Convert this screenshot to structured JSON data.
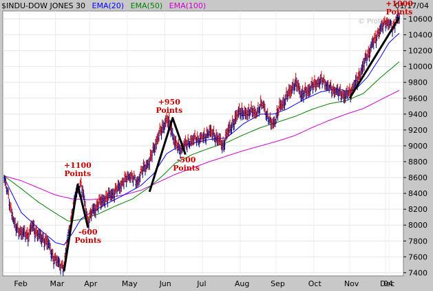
{
  "header": {
    "symbol": "$INDU-DOW JONES 30",
    "legend": [
      {
        "label": "EMA(20)",
        "color": "#0000ff"
      },
      {
        "label": "EMA(50)",
        "color": "#008000"
      },
      {
        "label": "EMA(100)",
        "color": "#cc00cc"
      }
    ],
    "date": "01/17/04"
  },
  "watermark": "© Proto...",
  "chart_data": {
    "type": "line",
    "title": "$INDU-DOW JONES 30",
    "x_ticks": [
      "Feb",
      "Mar",
      "Apr",
      "May",
      "Jun",
      "Jul",
      "Aug",
      "Sep",
      "Oct",
      "Nov",
      "Dec",
      "04"
    ],
    "y_ticks": [
      7400,
      7600,
      7800,
      8000,
      8200,
      8400,
      8600,
      8800,
      9000,
      9200,
      9400,
      9600,
      9800,
      10000,
      10200,
      10400,
      10600
    ],
    "ylim": [
      7360,
      10700
    ],
    "colors": {
      "price": "#cc0000",
      "ema20": "#0000ff",
      "ema50": "#008000",
      "ema100": "#cc00cc",
      "trend": "#000000",
      "annotation": "#cc0000"
    },
    "price_anchors": [
      [
        0,
        8600
      ],
      [
        6,
        8320
      ],
      [
        12,
        8000
      ],
      [
        20,
        7900
      ],
      [
        28,
        7870
      ],
      [
        33,
        7980
      ],
      [
        38,
        7900
      ],
      [
        44,
        7820
      ],
      [
        50,
        7800
      ],
      [
        55,
        7650
      ],
      [
        60,
        7560
      ],
      [
        66,
        7500
      ],
      [
        70,
        7480
      ],
      [
        74,
        7830
      ],
      [
        80,
        8190
      ],
      [
        85,
        8450
      ],
      [
        90,
        8510
      ],
      [
        94,
        8300
      ],
      [
        98,
        8040
      ],
      [
        104,
        8180
      ],
      [
        112,
        8280
      ],
      [
        120,
        8340
      ],
      [
        130,
        8420
      ],
      [
        140,
        8560
      ],
      [
        148,
        8640
      ],
      [
        155,
        8540
      ],
      [
        162,
        8700
      ],
      [
        170,
        8800
      ],
      [
        178,
        9050
      ],
      [
        185,
        9220
      ],
      [
        190,
        9320
      ],
      [
        193,
        9280
      ],
      [
        197,
        9150
      ],
      [
        200,
        9030
      ],
      [
        204,
        8960
      ],
      [
        209,
        8990
      ],
      [
        216,
        9050
      ],
      [
        224,
        9100
      ],
      [
        232,
        9100
      ],
      [
        240,
        9180
      ],
      [
        246,
        9130
      ],
      [
        250,
        9080
      ],
      [
        256,
        9000
      ],
      [
        262,
        9180
      ],
      [
        270,
        9320
      ],
      [
        276,
        9450
      ],
      [
        282,
        9380
      ],
      [
        288,
        9460
      ],
      [
        294,
        9400
      ],
      [
        300,
        9530
      ],
      [
        304,
        9500
      ],
      [
        308,
        9380
      ],
      [
        312,
        9280
      ],
      [
        316,
        9300
      ],
      [
        322,
        9480
      ],
      [
        330,
        9600
      ],
      [
        336,
        9720
      ],
      [
        342,
        9780
      ],
      [
        348,
        9640
      ],
      [
        352,
        9660
      ],
      [
        358,
        9730
      ],
      [
        364,
        9780
      ],
      [
        370,
        9830
      ],
      [
        376,
        9800
      ],
      [
        382,
        9720
      ],
      [
        388,
        9700
      ],
      [
        394,
        9650
      ],
      [
        400,
        9630
      ],
      [
        406,
        9690
      ],
      [
        412,
        9800
      ],
      [
        418,
        9950
      ],
      [
        424,
        10120
      ],
      [
        430,
        10260
      ],
      [
        436,
        10400
      ],
      [
        442,
        10500
      ],
      [
        446,
        10580
      ],
      [
        450,
        10540
      ],
      [
        454,
        10500
      ],
      [
        458,
        10580
      ],
      [
        462,
        10620
      ]
    ],
    "ema20_anchors": [
      [
        0,
        8600
      ],
      [
        20,
        8160
      ],
      [
        40,
        7960
      ],
      [
        60,
        7780
      ],
      [
        70,
        7750
      ],
      [
        80,
        7900
      ],
      [
        90,
        8080
      ],
      [
        100,
        8150
      ],
      [
        120,
        8270
      ],
      [
        140,
        8380
      ],
      [
        160,
        8500
      ],
      [
        175,
        8650
      ],
      [
        190,
        8900
      ],
      [
        205,
        9000
      ],
      [
        220,
        9030
      ],
      [
        240,
        9080
      ],
      [
        260,
        9100
      ],
      [
        280,
        9280
      ],
      [
        300,
        9400
      ],
      [
        315,
        9400
      ],
      [
        330,
        9460
      ],
      [
        350,
        9580
      ],
      [
        370,
        9680
      ],
      [
        390,
        9720
      ],
      [
        400,
        9690
      ],
      [
        410,
        9700
      ],
      [
        425,
        9870
      ],
      [
        440,
        10120
      ],
      [
        450,
        10300
      ],
      [
        462,
        10420
      ]
    ],
    "ema50_anchors": [
      [
        0,
        8620
      ],
      [
        20,
        8460
      ],
      [
        40,
        8290
      ],
      [
        60,
        8150
      ],
      [
        75,
        8050
      ],
      [
        90,
        8070
      ],
      [
        110,
        8140
      ],
      [
        130,
        8240
      ],
      [
        150,
        8330
      ],
      [
        170,
        8480
      ],
      [
        185,
        8620
      ],
      [
        200,
        8780
      ],
      [
        220,
        8890
      ],
      [
        240,
        8970
      ],
      [
        260,
        9040
      ],
      [
        280,
        9140
      ],
      [
        300,
        9230
      ],
      [
        320,
        9300
      ],
      [
        340,
        9370
      ],
      [
        360,
        9460
      ],
      [
        380,
        9530
      ],
      [
        400,
        9570
      ],
      [
        420,
        9660
      ],
      [
        440,
        9860
      ],
      [
        462,
        10060
      ]
    ],
    "ema100_anchors": [
      [
        0,
        8620
      ],
      [
        20,
        8560
      ],
      [
        40,
        8470
      ],
      [
        60,
        8380
      ],
      [
        80,
        8330
      ],
      [
        100,
        8320
      ],
      [
        120,
        8340
      ],
      [
        140,
        8380
      ],
      [
        160,
        8440
      ],
      [
        180,
        8540
      ],
      [
        200,
        8640
      ],
      [
        220,
        8720
      ],
      [
        240,
        8800
      ],
      [
        260,
        8870
      ],
      [
        280,
        8940
      ],
      [
        300,
        9000
      ],
      [
        320,
        9060
      ],
      [
        340,
        9130
      ],
      [
        360,
        9230
      ],
      [
        380,
        9320
      ],
      [
        400,
        9400
      ],
      [
        420,
        9470
      ],
      [
        440,
        9580
      ],
      [
        462,
        9700
      ]
    ],
    "trendlines": [
      [
        [
          70,
          7420
        ],
        [
          86,
          8510
        ],
        [
          98,
          7970
        ]
      ],
      [
        [
          170,
          8420
        ],
        [
          197,
          9350
        ],
        [
          212,
          8890
        ]
      ],
      [
        [
          404,
          9600
        ],
        [
          462,
          10620
        ]
      ]
    ],
    "annotations": [
      {
        "lines": [
          "+1100",
          "Points"
        ],
        "x": 86,
        "y": 8720
      },
      {
        "lines": [
          "-600",
          "Points"
        ],
        "x": 98,
        "y": 7880
      },
      {
        "lines": [
          "+950",
          "Points"
        ],
        "x": 193,
        "y": 9520
      },
      {
        "lines": [
          "-500",
          "Points"
        ],
        "x": 213,
        "y": 8790
      },
      {
        "lines": [
          "+1000",
          "Points"
        ],
        "x": 462,
        "y": 10760
      }
    ]
  }
}
